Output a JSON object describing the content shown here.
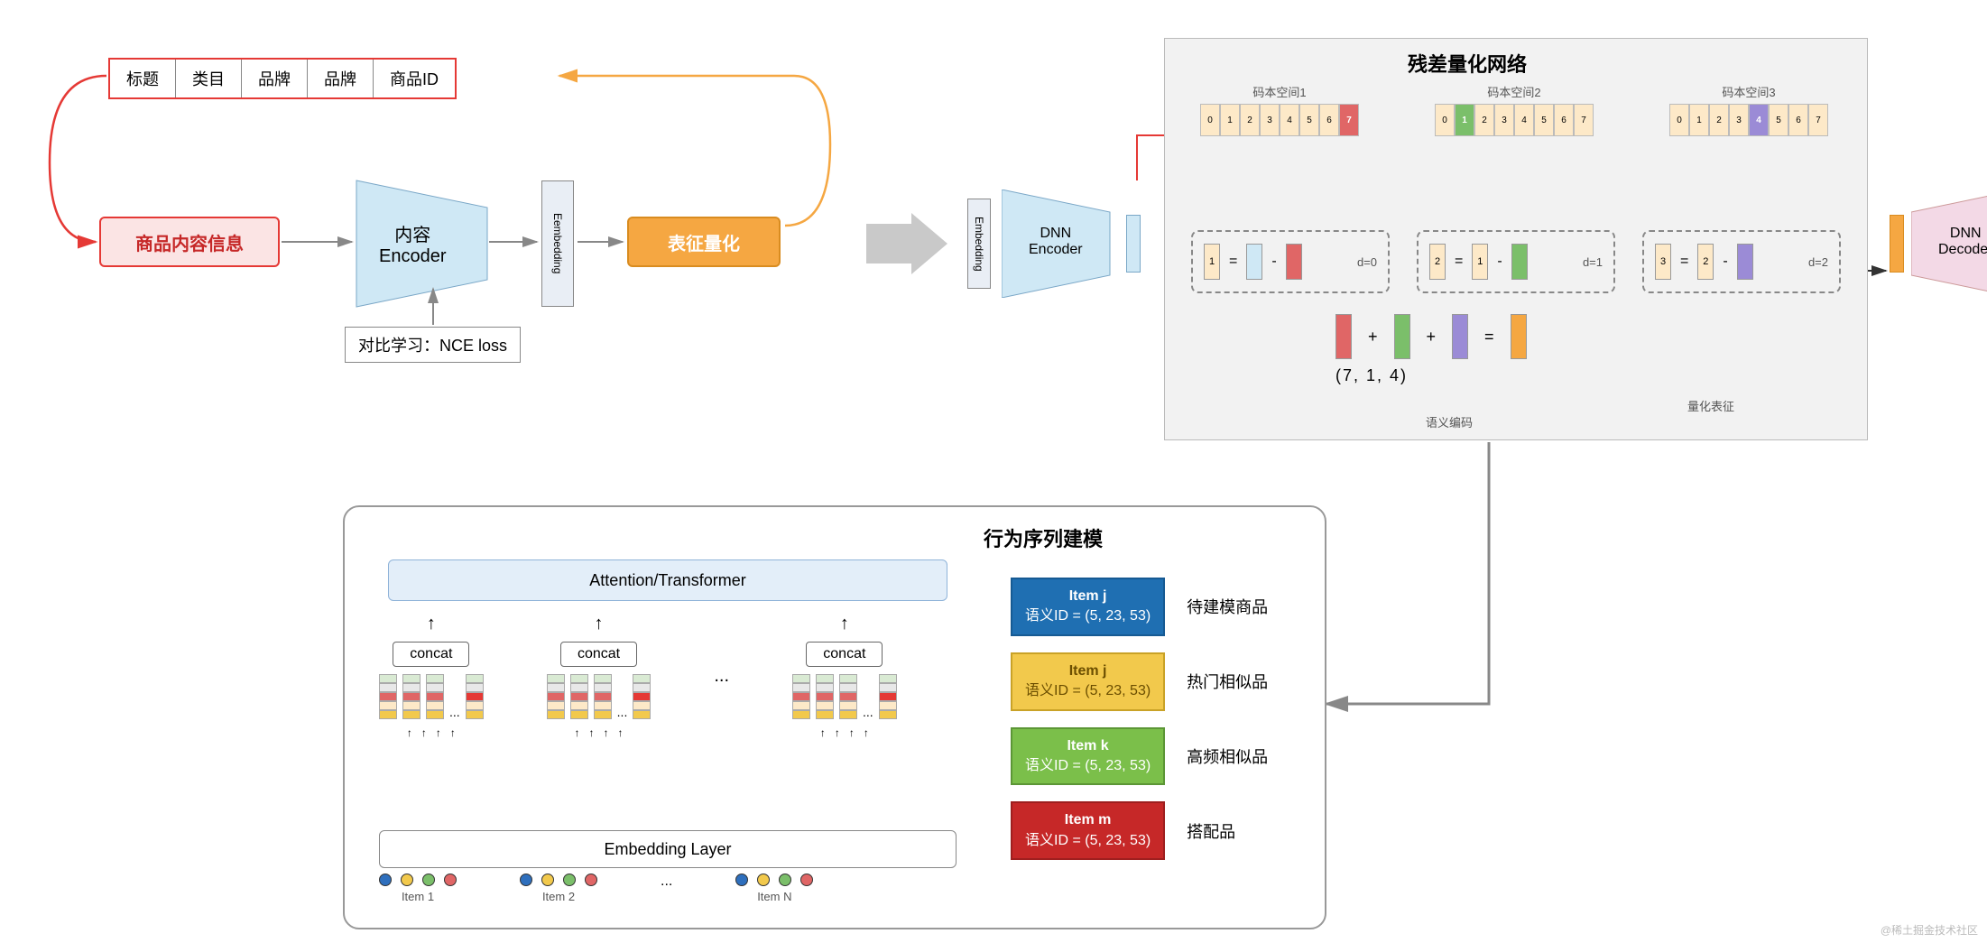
{
  "left": {
    "table_cells": [
      "标题",
      "类目",
      "品牌",
      "品牌",
      "商品ID"
    ],
    "content_info": "商品内容信息",
    "encoder": "内容\nEncoder",
    "embedding": "Eembedding",
    "quant": "表征量化",
    "nce": "对比学习：NCE loss",
    "colors": {
      "table_border": "#e53935",
      "content_bg": "#fbe4e4",
      "content_border": "#e53935",
      "encoder_fill": "#cfe8f5",
      "embed_fill": "#e9eef5",
      "quant_fill": "#f5a742",
      "quant_border": "#d98c20"
    }
  },
  "rq": {
    "title": "残差量化网络",
    "codebooks": [
      {
        "label": "码本空间1",
        "hi": 7,
        "hi_color": "#e06666"
      },
      {
        "label": "码本空间2",
        "hi": 1,
        "hi_color": "#7bbf6a"
      },
      {
        "label": "码本空间3",
        "hi": 4,
        "hi_color": "#9b8bd6"
      }
    ],
    "cells": [
      "0",
      "1",
      "2",
      "3",
      "4",
      "5",
      "6",
      "7"
    ],
    "eq": [
      {
        "l": "1",
        "d": "d=0",
        "a": "#cfe8f5",
        "b": "#e06666"
      },
      {
        "l": "2",
        "d": "d=1",
        "a": "#fde9c8",
        "b": "#7bbf6a",
        "pre": "1"
      },
      {
        "l": "3",
        "d": "d=2",
        "a": "#fde9c8",
        "b": "#9b8bd6",
        "pre": "2"
      }
    ],
    "sum_colors": [
      "#e06666",
      "#7bbf6a",
      "#9b8bd6",
      "#f5a742"
    ],
    "tuple": "(7,    1,    4)",
    "sem_label": "语义编码",
    "quant_label": "量化表征",
    "dnn_enc": "DNN\nEncoder",
    "dnn_dec": "DNN\nDecoder",
    "emb": "Embedding",
    "panel_bg": "#f2f2f2"
  },
  "seq": {
    "title": "行为序列建模",
    "attn": "Attention/Transformer",
    "concat": "concat",
    "emb_layer": "Embedding Layer",
    "items": [
      "Item 1",
      "Item 2",
      "Item N"
    ],
    "dot_colors": [
      "#2e6fbd",
      "#f2c94c",
      "#7bbf6a",
      "#e06666"
    ],
    "stack_colors": [
      "#d9ead3",
      "#e8e8e8",
      "#e06666",
      "#fde9c8",
      "#f2c94c"
    ],
    "right_items": [
      {
        "t1": "Item j",
        "t2": "语义ID = (5, 23, 53)",
        "bg": "#1f6fb2",
        "br": "#165a93",
        "lab": "待建模商品"
      },
      {
        "t1": "Item j",
        "t2": "语义ID = (5, 23, 53)",
        "bg": "#f2c94c",
        "br": "#c9a227",
        "lab": "热门相似品",
        "tc": "#6b4e00"
      },
      {
        "t1": "Item k",
        "t2": "语义ID = (5, 23, 53)",
        "bg": "#7bbf4a",
        "br": "#5c9636",
        "lab": "高频相似品"
      },
      {
        "t1": "Item m",
        "t2": "语义ID = (5, 23, 53)",
        "bg": "#c62828",
        "br": "#9e1f1f",
        "lab": "搭配品"
      }
    ]
  },
  "watermark": "@稀土掘金技术社区",
  "fonts": {
    "title": 22,
    "body": 16,
    "small": 13
  }
}
